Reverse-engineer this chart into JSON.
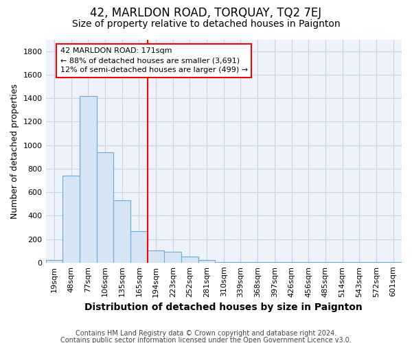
{
  "title": "42, MARLDON ROAD, TORQUAY, TQ2 7EJ",
  "subtitle": "Size of property relative to detached houses in Paignton",
  "xlabel": "Distribution of detached houses by size in Paignton",
  "ylabel": "Number of detached properties",
  "footnote1": "Contains HM Land Registry data © Crown copyright and database right 2024.",
  "footnote2": "Contains public sector information licensed under the Open Government Licence v3.0.",
  "categories": [
    "19sqm",
    "48sqm",
    "77sqm",
    "106sqm",
    "135sqm",
    "165sqm",
    "194sqm",
    "223sqm",
    "252sqm",
    "281sqm",
    "310sqm",
    "339sqm",
    "368sqm",
    "397sqm",
    "426sqm",
    "456sqm",
    "485sqm",
    "514sqm",
    "543sqm",
    "572sqm",
    "601sqm"
  ],
  "values": [
    20,
    740,
    1420,
    940,
    530,
    270,
    105,
    90,
    50,
    25,
    5,
    5,
    5,
    5,
    5,
    5,
    5,
    5,
    5,
    5,
    5
  ],
  "bar_color": "#d6e4f5",
  "bar_edge_color": "#6aaad4",
  "red_line_x": 5.5,
  "annotation_line1": "42 MARLDON ROAD: 171sqm",
  "annotation_line2": "← 88% of detached houses are smaller (3,691)",
  "annotation_line3": "12% of semi-detached houses are larger (499) →",
  "ylim": [
    0,
    1900
  ],
  "yticks": [
    0,
    200,
    400,
    600,
    800,
    1000,
    1200,
    1400,
    1600,
    1800
  ],
  "background_color": "#edf2fb",
  "grid_color": "#c8d4e8",
  "title_fontsize": 12,
  "subtitle_fontsize": 10,
  "ylabel_fontsize": 9,
  "xlabel_fontsize": 10,
  "tick_fontsize": 8,
  "footnote_fontsize": 7
}
